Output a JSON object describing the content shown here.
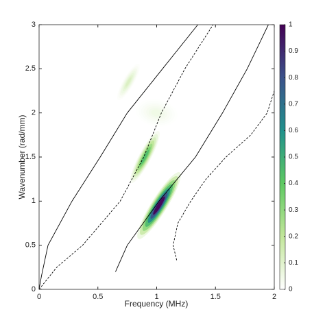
{
  "chart_data": {
    "type": "heatmap",
    "x_label": "Frequency (MHz)",
    "y_label": "Wavenumber (rad/mm)",
    "xlim": [
      0,
      2
    ],
    "ylim": [
      0,
      3
    ],
    "xticks": [
      0,
      0.5,
      1,
      1.5,
      2
    ],
    "yticks": [
      0,
      0.5,
      1,
      1.5,
      2,
      2.5,
      3
    ],
    "colorbar_lim": [
      0,
      1
    ],
    "colorbar_ticks": [
      0,
      0.1,
      0.2,
      0.3,
      0.4,
      0.5,
      0.6,
      0.7,
      0.8,
      0.9,
      1
    ],
    "colormap": [
      "#ffffff",
      "#c2e69a",
      "#5ec962",
      "#21918c",
      "#3b528b",
      "#440154"
    ],
    "peaks": [
      {
        "x": 1.02,
        "y": 0.95,
        "value": 1
      },
      {
        "x": 0.9,
        "y": 1.5,
        "value": 0.45
      },
      {
        "x": 0.76,
        "y": 2.35,
        "value": 0.12
      },
      {
        "x": 1.0,
        "y": 2.0,
        "value": 0.05
      }
    ],
    "series": [
      {
        "color": "#000000",
        "dash": false,
        "x": [
          0,
          0.02,
          0.076,
          0.28,
          0.52,
          0.75,
          1.05,
          1.35
        ],
        "values": [
          0,
          0.15,
          0.5,
          1,
          1.5,
          2,
          2.5,
          3
        ]
      },
      {
        "color": "#000000",
        "dash": true,
        "x": [
          0,
          0.15,
          0.37,
          0.69,
          0.89,
          1.04,
          1.24,
          1.48
        ],
        "values": [
          0,
          0.25,
          0.5,
          1,
          1.5,
          2,
          2.5,
          3
        ]
      },
      {
        "color": "#000000",
        "dash": false,
        "x": [
          0.65,
          0.75,
          1.02,
          1.33,
          1.56,
          1.77,
          1.95
        ],
        "values": [
          0.2,
          0.5,
          1,
          1.5,
          2,
          2.5,
          3
        ]
      },
      {
        "color": "#000000",
        "dash": true,
        "x": [
          1.17,
          1.14,
          1.18,
          1.29,
          1.42,
          1.59,
          1.8,
          1.94,
          2
        ],
        "values": [
          0.33,
          0.5,
          0.75,
          1,
          1.25,
          1.5,
          1.75,
          2,
          2.25
        ]
      }
    ]
  }
}
